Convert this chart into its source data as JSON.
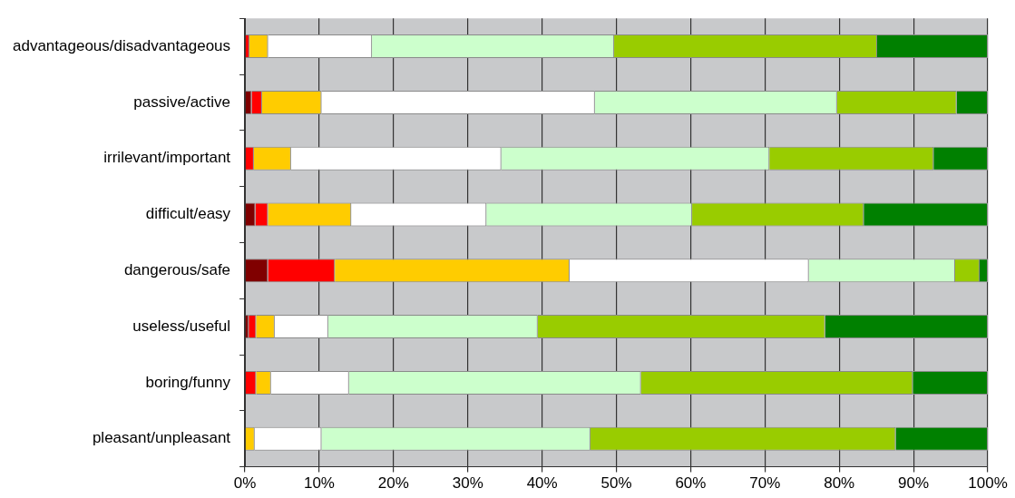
{
  "chart_data": {
    "type": "bar",
    "orientation": "horizontal",
    "stacked": true,
    "categories": [
      "advantageous/disadvantageous",
      "passive/active",
      "irrilevant/important",
      "difficult/easy",
      "dangerous/safe",
      "useless/useful",
      "boring/funny",
      "pleasant/unpleasant"
    ],
    "series": [
      {
        "color": "#800000",
        "values": [
          0,
          0.9,
          0,
          1.4,
          3.1,
          0.5,
          0,
          0
        ]
      },
      {
        "color": "#ff0000",
        "values": [
          0.6,
          1.4,
          1.2,
          1.7,
          9.0,
          1.0,
          1.5,
          0
        ]
      },
      {
        "color": "#ffcc00",
        "values": [
          2.5,
          8.0,
          5.0,
          11.2,
          31.6,
          2.5,
          2.0,
          1.3
        ]
      },
      {
        "color": "#ffffff",
        "values": [
          14.0,
          36.8,
          28.3,
          18.2,
          32.2,
          7.2,
          10.5,
          9.0
        ]
      },
      {
        "color": "#ccffcc",
        "values": [
          32.6,
          32.6,
          36.1,
          27.7,
          19.7,
          28.2,
          39.3,
          36.2
        ]
      },
      {
        "color": "#99cc00",
        "values": [
          35.4,
          16.1,
          22.1,
          23.1,
          3.3,
          38.7,
          36.6,
          41.1
        ]
      },
      {
        "color": "#008000",
        "values": [
          14.9,
          4.2,
          7.3,
          16.7,
          1.1,
          21.9,
          10.1,
          12.4
        ]
      }
    ],
    "xlim": [
      0,
      100
    ],
    "xticks": [
      {
        "value": 0,
        "label": "0%"
      },
      {
        "value": 10,
        "label": "10%"
      },
      {
        "value": 20,
        "label": "20%"
      },
      {
        "value": 30,
        "label": "30%"
      },
      {
        "value": 40,
        "label": "40%"
      },
      {
        "value": 50,
        "label": "50%"
      },
      {
        "value": 60,
        "label": "60%"
      },
      {
        "value": 70,
        "label": "70%"
      },
      {
        "value": 80,
        "label": "80%"
      },
      {
        "value": 90,
        "label": "90%"
      },
      {
        "value": 100,
        "label": "100%"
      }
    ],
    "grid": "x",
    "legend": false
  }
}
